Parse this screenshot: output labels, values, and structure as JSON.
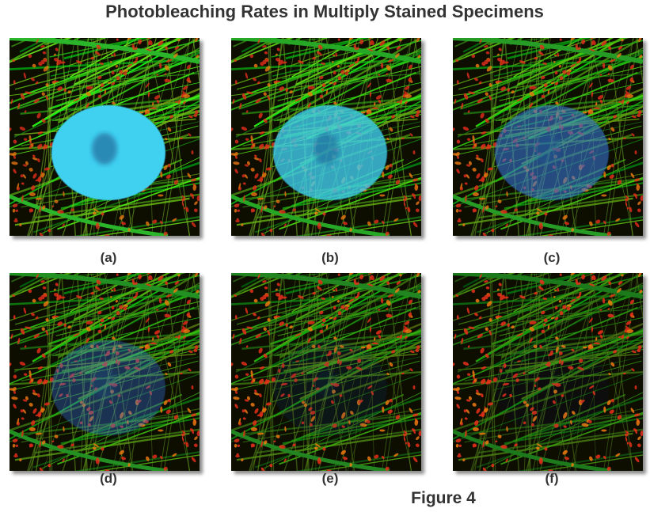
{
  "title": "Photobleaching Rates in Multiply Stained Specimens",
  "panels": [
    {
      "label": "(a)"
    },
    {
      "label": "(b)"
    },
    {
      "label": "(c)"
    },
    {
      "label": "(d)"
    },
    {
      "label": "(e)"
    },
    {
      "label": "(f)"
    }
  ],
  "caption": "Figure 4"
}
